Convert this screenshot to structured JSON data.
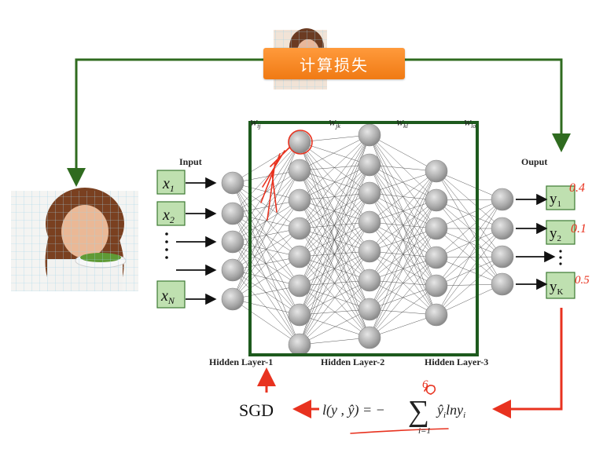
{
  "loss_box": {
    "label": "计算损失"
  },
  "labels": {
    "input": "Input",
    "output": "Ouput",
    "hidden1": "Hidden Layer-1",
    "hidden2": "Hidden Layer-2",
    "hidden3": "Hidden Layer-3",
    "weights": [
      "W_ij",
      "W_jk",
      "W_kl",
      "W_lo"
    ]
  },
  "inputs": [
    {
      "var": "x",
      "sub": "1"
    },
    {
      "var": "x",
      "sub": "2"
    },
    {
      "var": "x",
      "sub": "N"
    }
  ],
  "outputs": [
    {
      "var": "y",
      "sub": "1"
    },
    {
      "var": "y",
      "sub": "2"
    },
    {
      "var": "y",
      "sub": "K"
    }
  ],
  "handwritten": {
    "y1": "0.4",
    "y2": "0.1",
    "yK": "0.5",
    "sum_top": "6"
  },
  "formula": {
    "lhs": "l(y , ŷ) = −",
    "sum": "∑",
    "term": "ŷ",
    "term_sub": "i",
    "term_rest": "lny",
    "term_rest_sub": "i",
    "lower": "i=1"
  },
  "sgd": "SGD",
  "colors": {
    "frame": "#1d5a1d",
    "arrow_green": "#2f6b1f",
    "arrow_red": "#e8321f",
    "box_fill": "#bfe0b0",
    "box_border": "#3c7a32"
  },
  "images": [
    "woman-with-salad-photo"
  ]
}
